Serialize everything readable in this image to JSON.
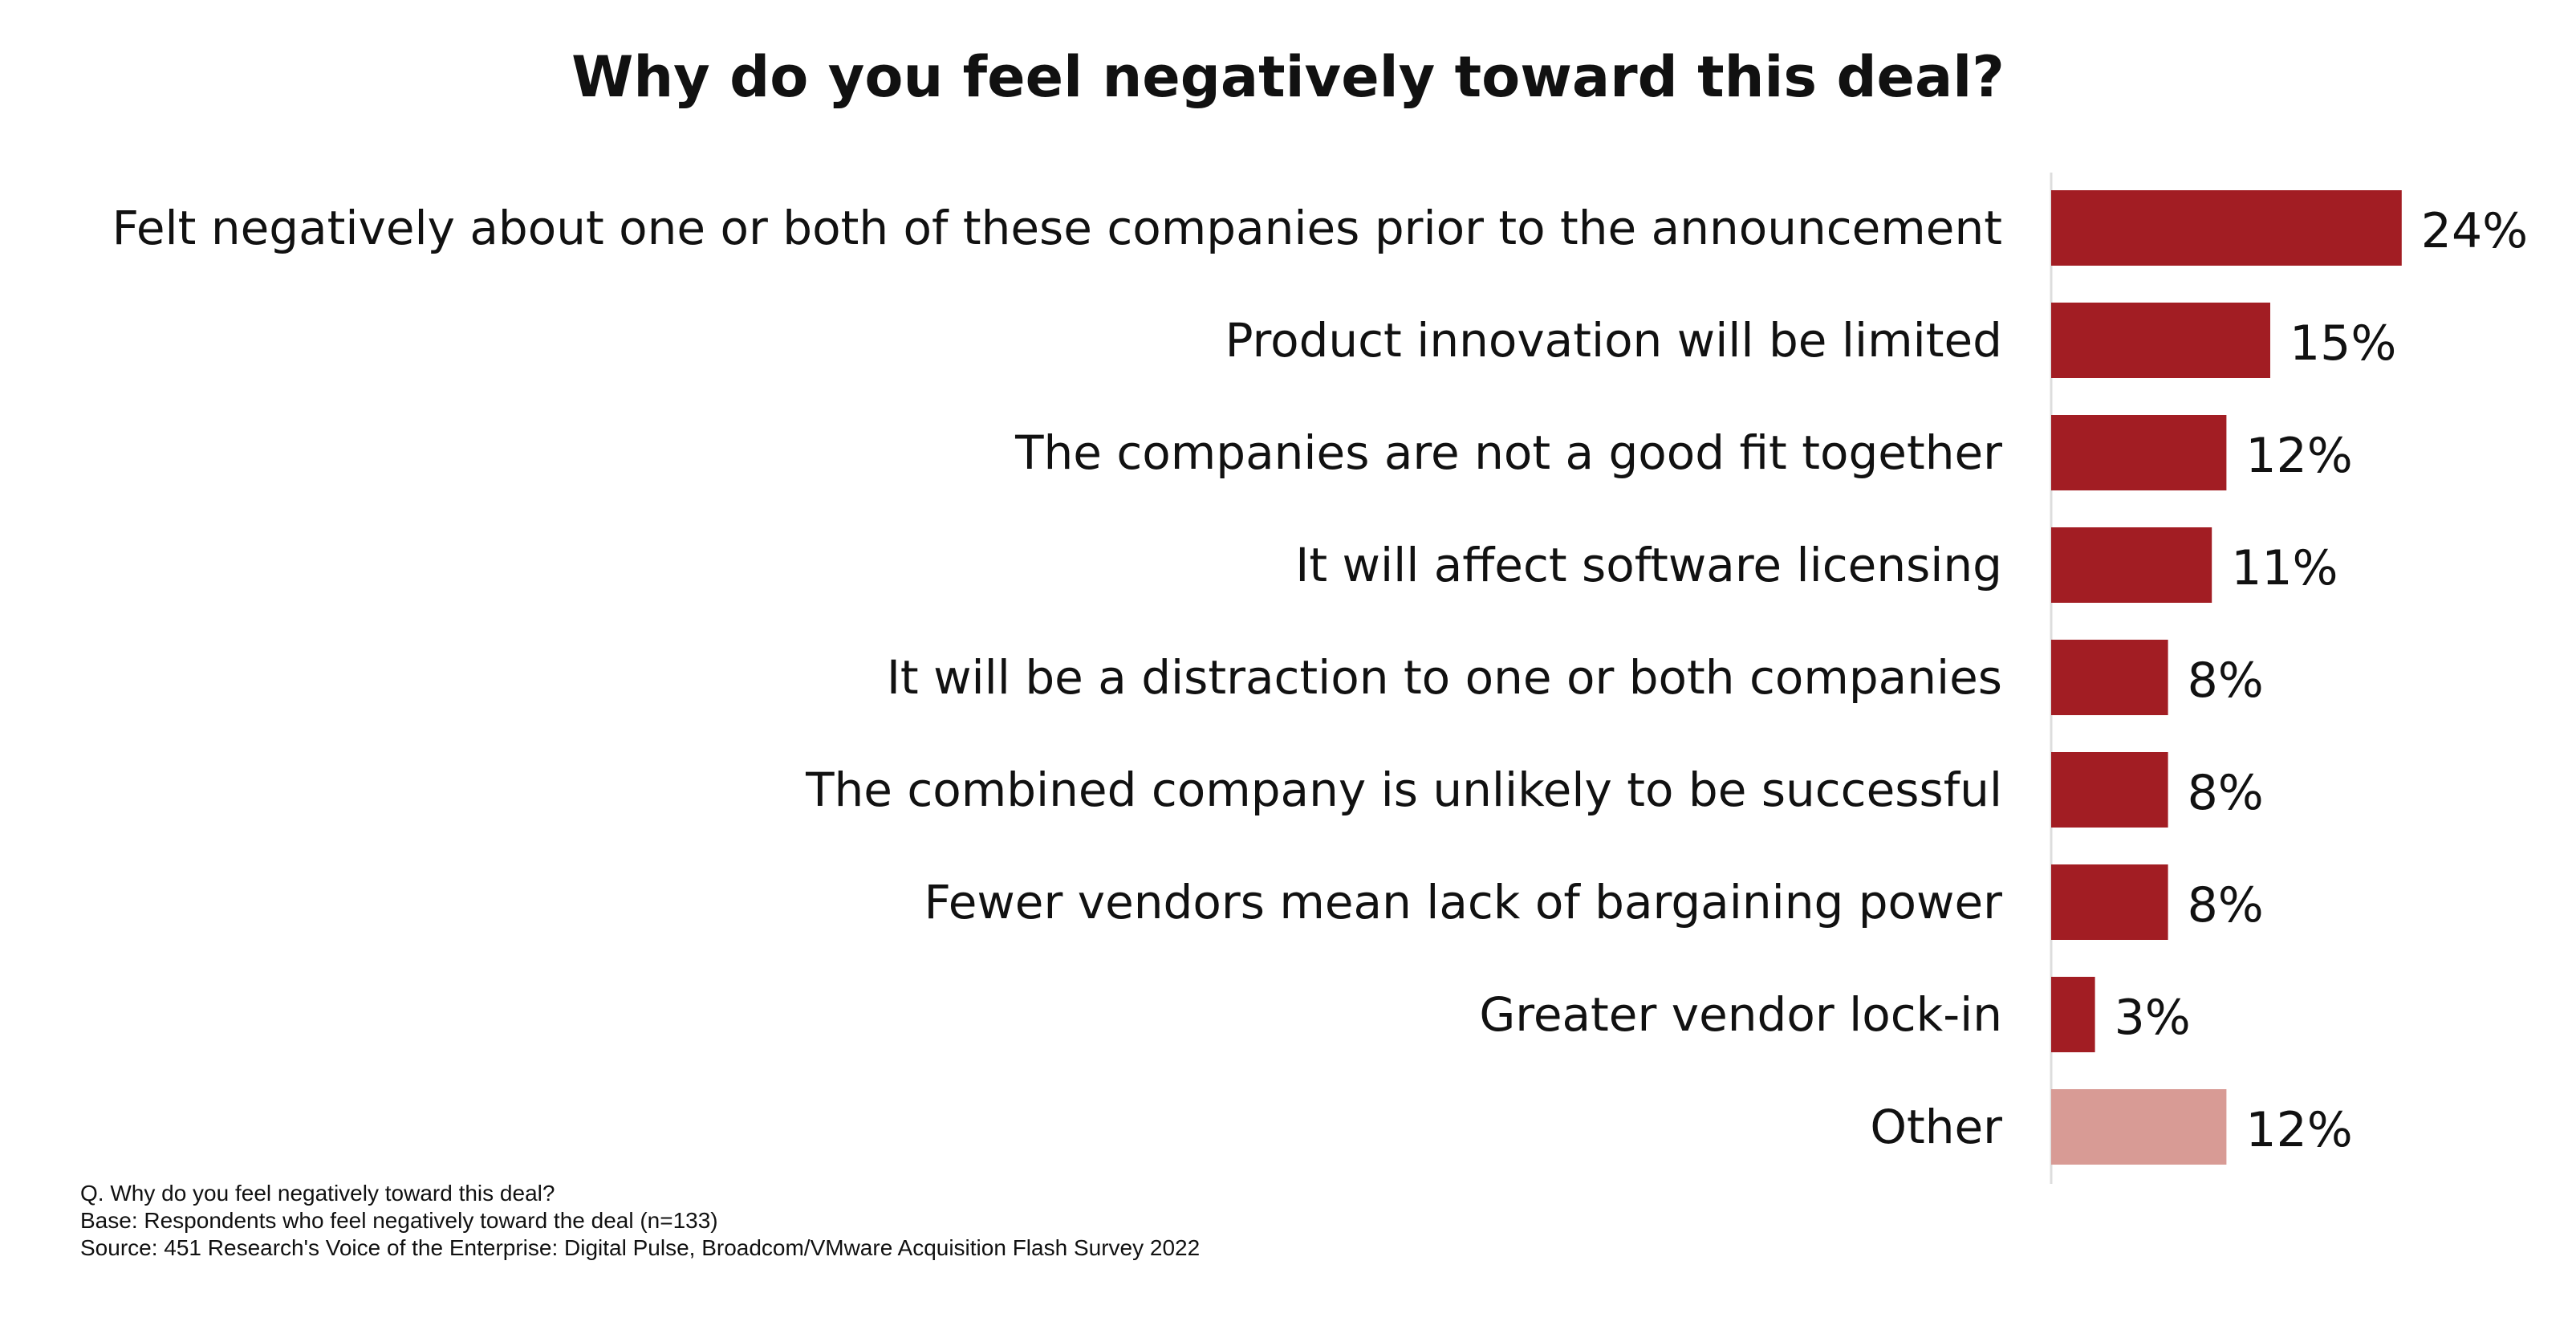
{
  "chart_data": {
    "type": "bar",
    "orientation": "horizontal",
    "title": "Why do you feel negatively toward this deal?",
    "xlabel": "",
    "ylabel": "",
    "xlim": [
      0,
      30
    ],
    "grid": false,
    "legend": "none",
    "categories": [
      "Felt negatively about one or both of these companies prior to the announcement",
      "Product innovation will be limited",
      "The companies are not a good fit together",
      "It will affect software licensing",
      "It will be a distraction to one or both companies",
      "The combined company is unlikely to be successful",
      "Fewer vendors mean lack of bargaining power",
      "Greater vendor lock-in",
      "Other"
    ],
    "values": [
      24,
      15,
      12,
      11,
      8,
      8,
      8,
      3,
      12
    ],
    "value_labels": [
      "24%",
      "15%",
      "12%",
      "11%",
      "8%",
      "8%",
      "8%",
      "3%",
      "12%"
    ],
    "bar_colors": [
      "#a21d23",
      "#a21d23",
      "#a21d23",
      "#a21d23",
      "#a21d23",
      "#a21d23",
      "#a21d23",
      "#a21d23",
      "#d89b95"
    ]
  },
  "footnotes": {
    "question": "Q. Why do you feel negatively toward this deal?",
    "base": "Base: Respondents who feel negatively toward the deal (n=133)",
    "source": "Source: 451 Research's Voice of the Enterprise: Digital Pulse, Broadcom/VMware Acquisition Flash Survey 2022"
  },
  "colors": {
    "bar": "#a21d23",
    "bar_other": "#d89b95",
    "axis": "#dddddd",
    "text": "#111111"
  }
}
